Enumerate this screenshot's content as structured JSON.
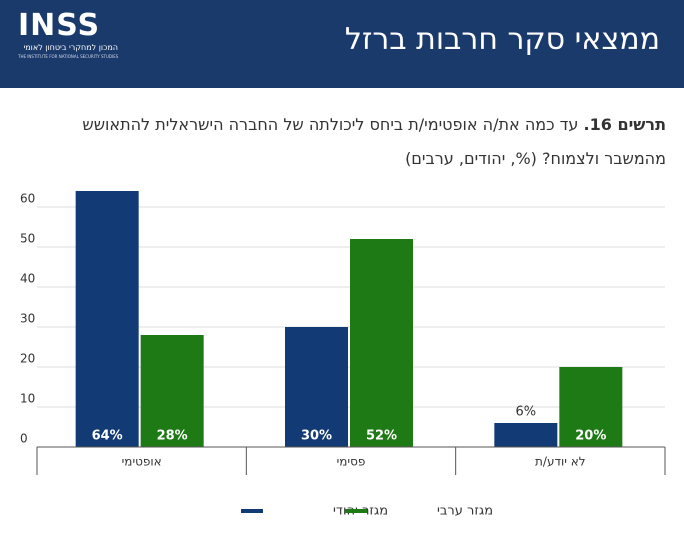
{
  "header": {
    "logo": "INSS",
    "logo_subtitle": "המכון למחקרי ביטחון לאומי",
    "logo_english": "THE INSTITUTE FOR NATIONAL SECURITY STUDIES",
    "title": "ממצאי סקר חרבות ברזל"
  },
  "chart_data": {
    "type": "bar",
    "title_number": "תרשים 16.",
    "title": "עד כמה את/ה אופטימי/ת ביחס ליכולתה של החברה הישראלית להתאושש מהמשבר ולצמוח? (%, יהודים, ערבים)",
    "categories": [
      "אופטימי",
      "פסימי",
      "לא יודע/ת"
    ],
    "series": [
      {
        "name": "מגזר יהודי",
        "color": "#123a74",
        "values": [
          64,
          30,
          6
        ],
        "value_labels": [
          "64%",
          "30%",
          "6%"
        ]
      },
      {
        "name": "מגזר ערבי",
        "color": "#1e7a14",
        "values": [
          28,
          52,
          20
        ],
        "value_labels": [
          "28%",
          "52%",
          "20%"
        ]
      }
    ],
    "ylim": [
      0,
      65
    ],
    "yticks": [
      0,
      10,
      20,
      30,
      40,
      50,
      60
    ],
    "grid": true
  }
}
